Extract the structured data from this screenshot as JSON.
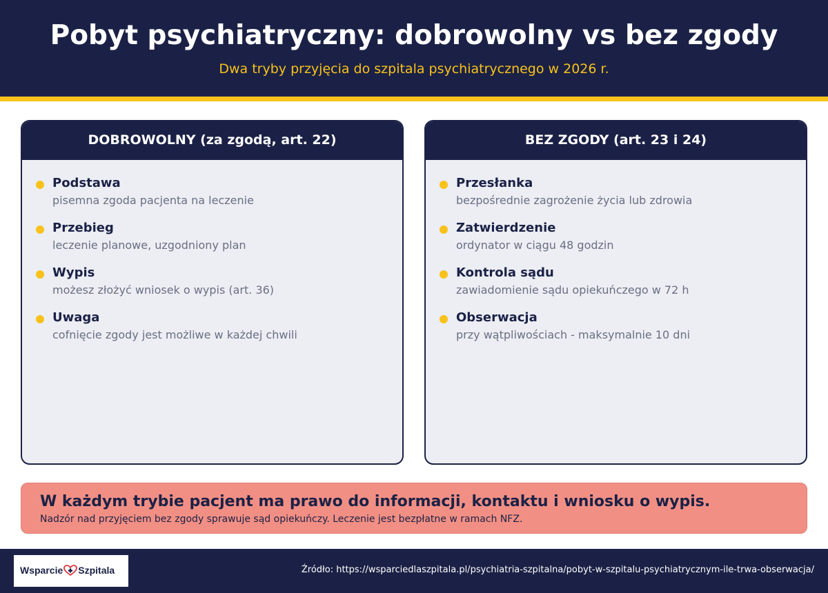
{
  "header": {
    "title": "Pobyt psychiatryczny: dobrowolny vs bez zgody",
    "subtitle": "Dwa tryby przyjęcia do szpitala psychiatrycznego w 2026 r."
  },
  "cards": [
    {
      "heading": "DOBROWOLNY (za zgodą, art. 22)",
      "items": [
        {
          "title": "Podstawa",
          "desc": "pisemna zgoda pacjenta na leczenie"
        },
        {
          "title": "Przebieg",
          "desc": "leczenie planowe, uzgodniony plan"
        },
        {
          "title": "Wypis",
          "desc": "możesz złożyć wniosek o wypis (art. 36)"
        },
        {
          "title": "Uwaga",
          "desc": "cofnięcie zgody jest możliwe w każdej chwili"
        }
      ]
    },
    {
      "heading": "BEZ ZGODY (art. 23 i 24)",
      "items": [
        {
          "title": "Przesłanka",
          "desc": "bezpośrednie zagrożenie życia lub zdrowia"
        },
        {
          "title": "Zatwierdzenie",
          "desc": "ordynator w ciągu 48 godzin"
        },
        {
          "title": "Kontrola sądu",
          "desc": "zawiadomienie sądu opiekuńczego w 72 h"
        },
        {
          "title": "Obserwacja",
          "desc": "przy wątpliwościach - maksymalnie 10 dni"
        }
      ]
    }
  ],
  "note": {
    "title": "W każdym trybie pacjent ma prawo do informacji, kontaktu i wniosku o wypis.",
    "text": "Nadzór nad przyjęciem bez zgody sprawuje sąd opiekuńczy. Leczenie jest bezpłatne w ramach NFZ."
  },
  "footer": {
    "logo_left": "Wsparcie",
    "logo_right": "Szpitala",
    "logo_icon": "heart-cross-icon",
    "source_label": "Źródło:",
    "source_url": "https://wsparciedlaszpitala.pl/psychiatria-szpitalna/pobyt-w-szpitalu-psychiatrycznym-ile-trwa-obserwacja/"
  },
  "colors": {
    "navy": "#1b2146",
    "accent": "#f8c21b",
    "note_bg": "#f28f84",
    "card_bg": "#eceef4",
    "muted_text": "#6a6e82",
    "heart_red": "#e0333c"
  }
}
